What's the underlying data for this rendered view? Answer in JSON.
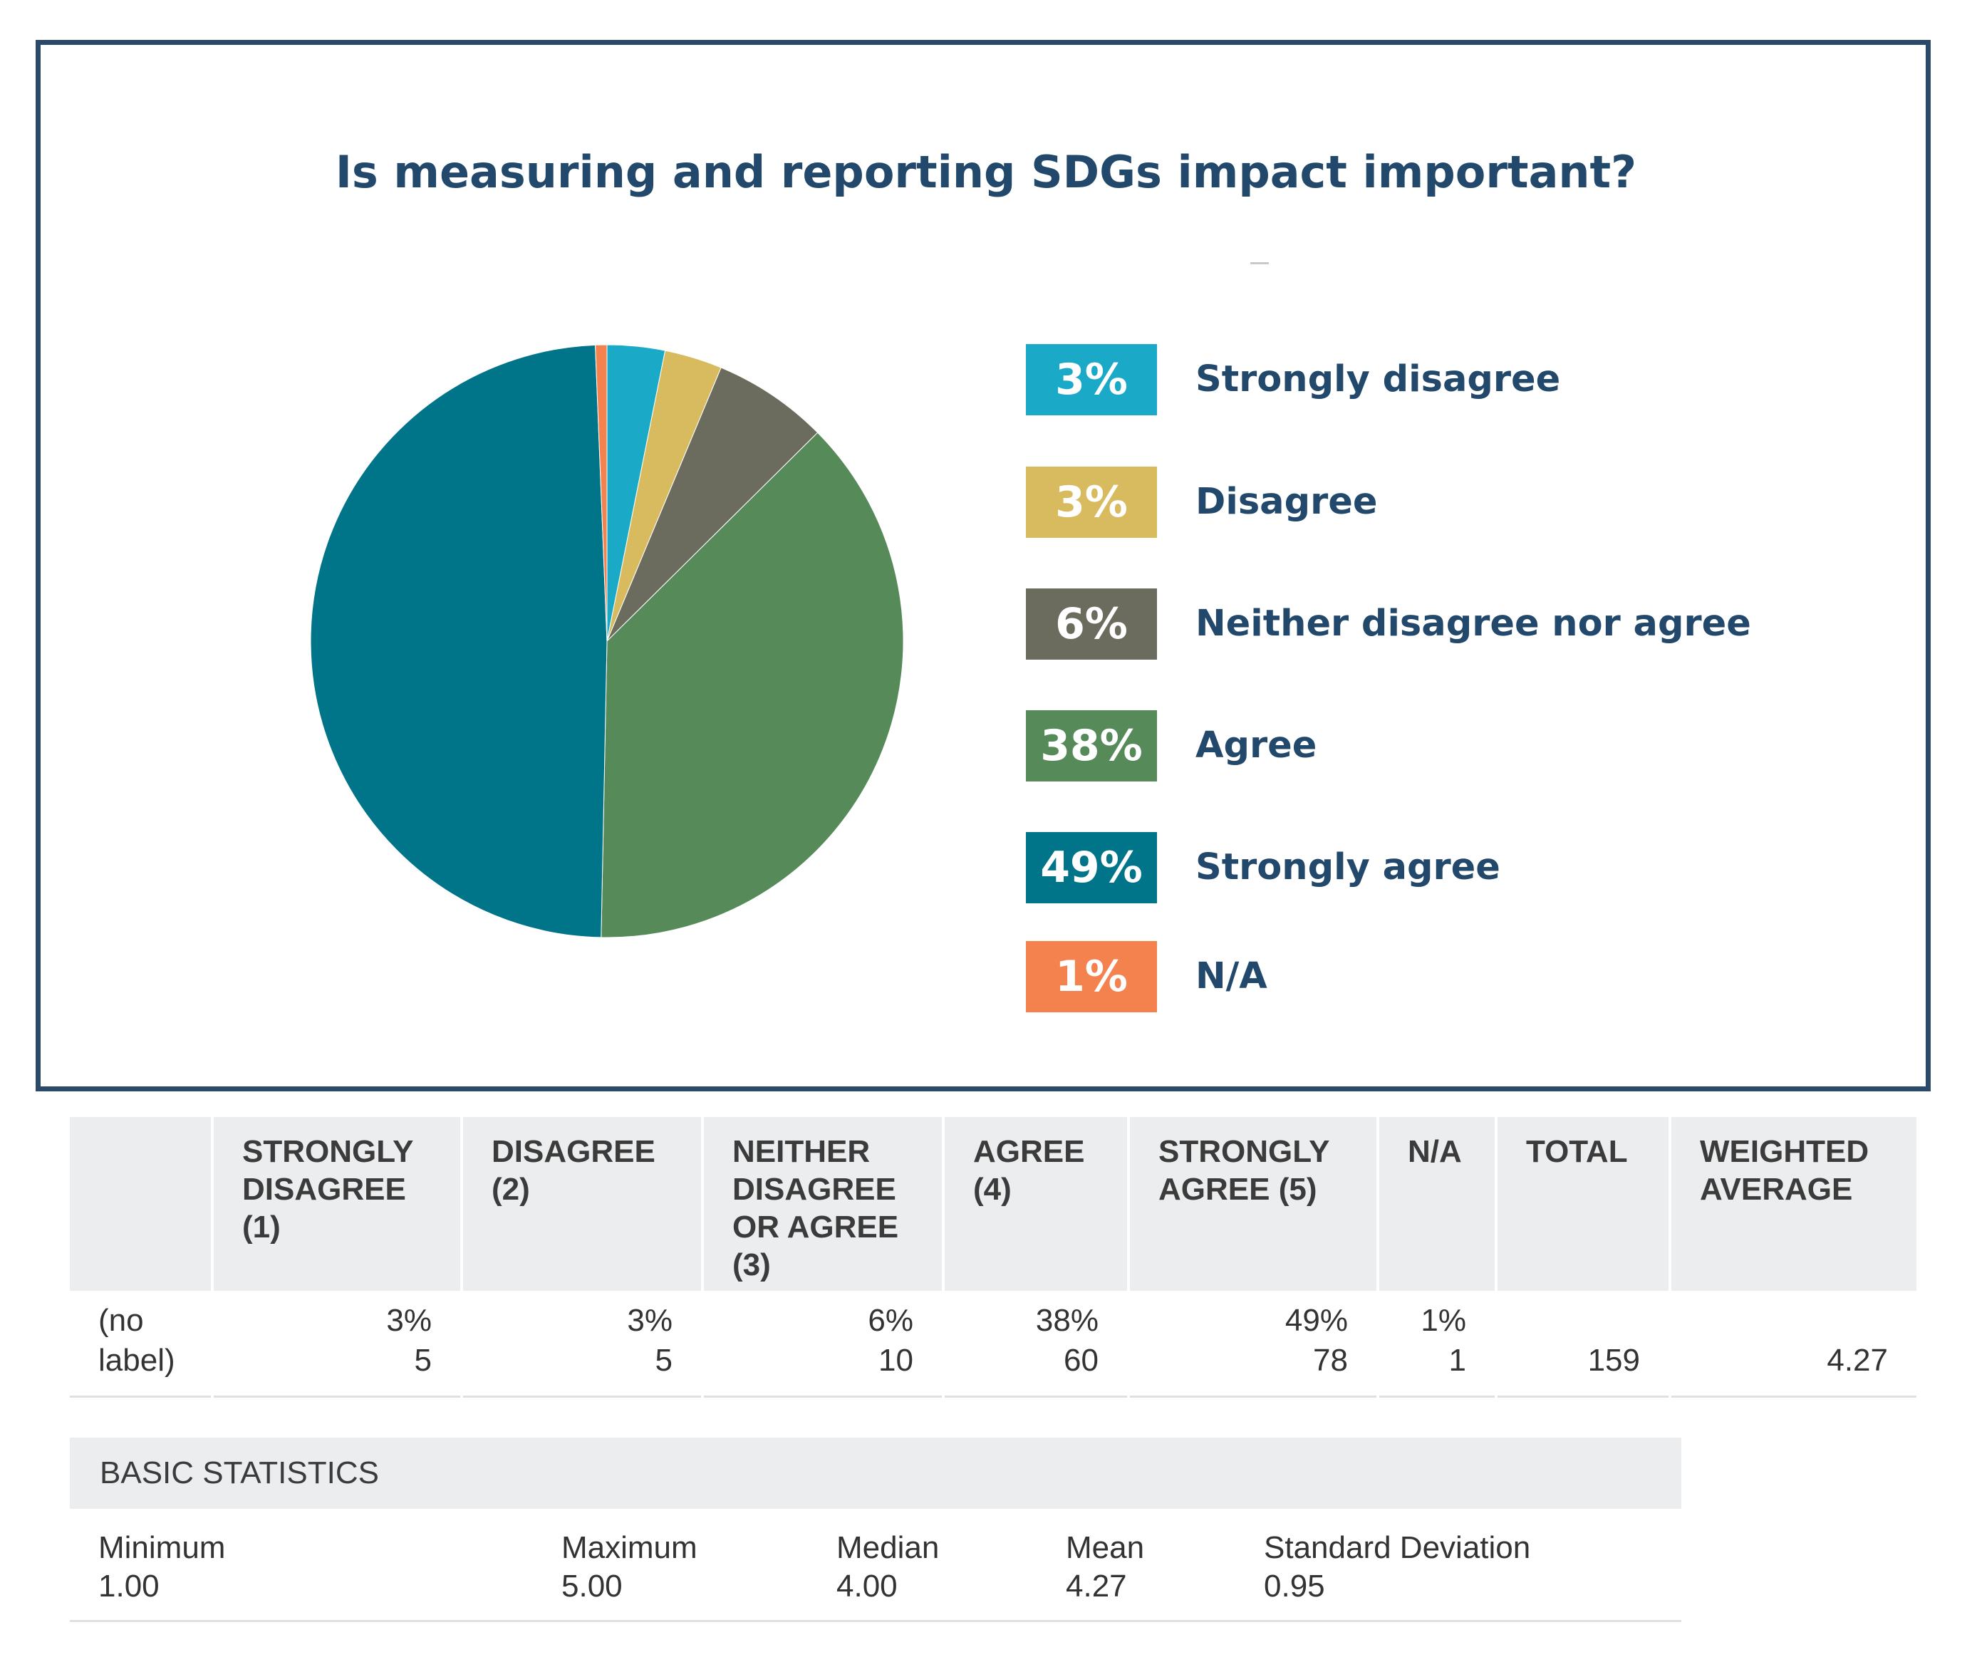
{
  "chart_data": {
    "type": "pie",
    "title": "Is measuring and reporting SDGs impact important?",
    "start": "12 o'clock, clockwise",
    "slices": [
      {
        "label": "Strongly disagree",
        "percent_label": "3%",
        "value": 5,
        "color": "#1aa9c7"
      },
      {
        "label": "Disagree",
        "percent_label": "3%",
        "value": 5,
        "color": "#d8bb5e"
      },
      {
        "label": "Neither disagree nor agree",
        "percent_label": "6%",
        "value": 10,
        "color": "#6b6b5e"
      },
      {
        "label": "Agree",
        "percent_label": "38%",
        "value": 60,
        "color": "#568a59"
      },
      {
        "label": "Strongly agree",
        "percent_label": "49%",
        "value": 78,
        "color": "#007488"
      },
      {
        "label": "N/A",
        "percent_label": "1%",
        "value": 1,
        "color": "#f4824f"
      }
    ],
    "legend_placement": "right"
  },
  "table": {
    "headers": [
      "",
      "STRONGLY DISAGREE (1)",
      "DISAGREE (2)",
      "NEITHER DISAGREE OR AGREE (3)",
      "AGREE (4)",
      "STRONGLY AGREE (5)",
      "N/A",
      "TOTAL",
      "WEIGHTED AVERAGE"
    ],
    "row": {
      "label": "(no label)",
      "cells": [
        {
          "percent": "3%",
          "count": "5"
        },
        {
          "percent": "3%",
          "count": "5"
        },
        {
          "percent": "6%",
          "count": "10"
        },
        {
          "percent": "38%",
          "count": "60"
        },
        {
          "percent": "49%",
          "count": "78"
        },
        {
          "percent": "1%",
          "count": "1"
        },
        {
          "percent": "",
          "count": "159"
        },
        {
          "percent": "",
          "count": "4.27"
        }
      ]
    }
  },
  "basic_statistics": {
    "title": "BASIC STATISTICS",
    "items": [
      {
        "label": "Minimum",
        "value": "1.00"
      },
      {
        "label": "Maximum",
        "value": "5.00"
      },
      {
        "label": "Median",
        "value": "4.00"
      },
      {
        "label": "Mean",
        "value": "4.27"
      },
      {
        "label": "Standard Deviation",
        "value": "0.95"
      }
    ]
  }
}
